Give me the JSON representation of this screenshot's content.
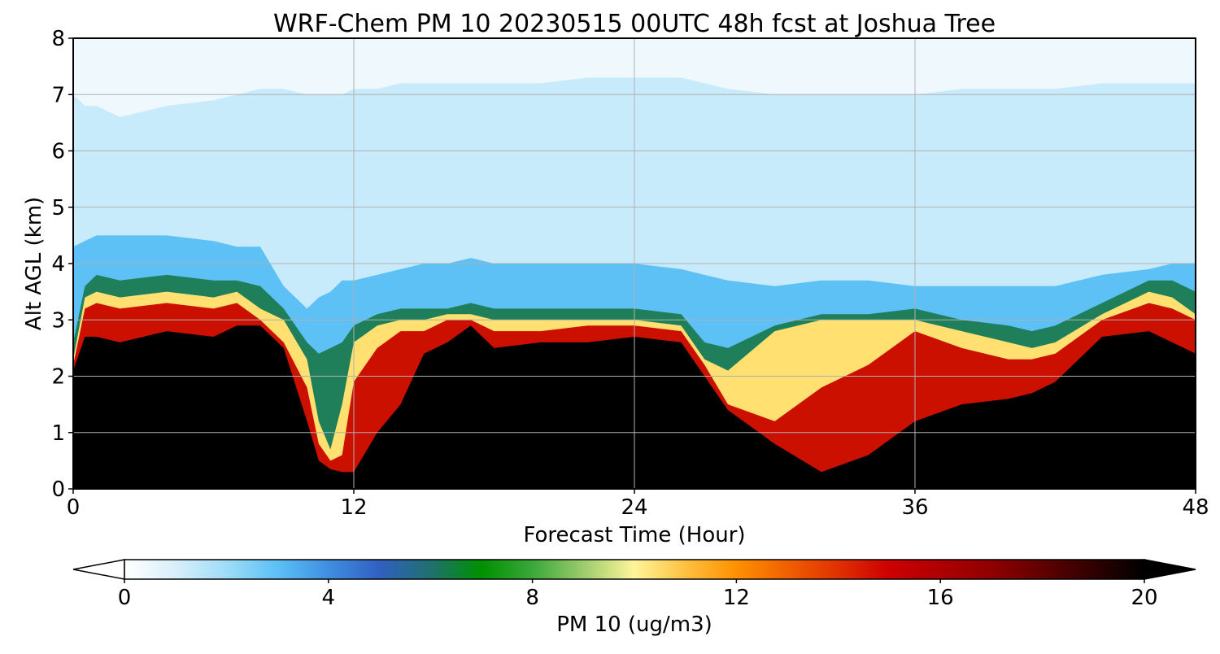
{
  "chart_data": {
    "type": "heatmap",
    "title": "WRF-Chem PM 10  20230515 00UTC 48h fcst at Joshua Tree",
    "xlabel": "Forecast Time (Hour)",
    "ylabel": "Alt AGL (km)",
    "x_ticks": [
      0,
      12,
      24,
      36,
      48
    ],
    "y_ticks": [
      0,
      1,
      2,
      3,
      4,
      5,
      6,
      7,
      8
    ],
    "xlim": [
      0,
      48
    ],
    "ylim": [
      0,
      8
    ],
    "grid": true,
    "colorbar": {
      "label": "PM 10  (ug/m3)",
      "ticks": [
        0,
        4,
        8,
        12,
        16,
        20
      ],
      "range": [
        0,
        20
      ],
      "extend": "both",
      "orientation": "horizontal",
      "stops": [
        {
          "value": 0,
          "color": "#ffffff"
        },
        {
          "value": 1,
          "color": "#d8effb"
        },
        {
          "value": 2,
          "color": "#9fdcf8"
        },
        {
          "value": 3,
          "color": "#5cc0f5"
        },
        {
          "value": 4,
          "color": "#3f8fe0"
        },
        {
          "value": 5,
          "color": "#3060c0"
        },
        {
          "value": 6,
          "color": "#1f7070"
        },
        {
          "value": 7,
          "color": "#009000"
        },
        {
          "value": 8,
          "color": "#3aa83a"
        },
        {
          "value": 9,
          "color": "#9ccc6c"
        },
        {
          "value": 10,
          "color": "#fff59a"
        },
        {
          "value": 11,
          "color": "#ffc040"
        },
        {
          "value": 12,
          "color": "#ff9000"
        },
        {
          "value": 14,
          "color": "#e03000"
        },
        {
          "value": 15,
          "color": "#cc0000"
        },
        {
          "value": 17,
          "color": "#900000"
        },
        {
          "value": 19,
          "color": "#300000"
        },
        {
          "value": 20,
          "color": "#000000"
        }
      ]
    },
    "field": {
      "x": [
        0,
        0.5,
        1,
        2,
        4,
        6,
        7,
        8,
        9,
        10,
        10.5,
        11,
        11.5,
        12,
        13,
        14,
        15,
        16,
        17,
        18,
        20,
        22,
        24,
        26,
        27,
        28,
        30,
        32,
        34,
        36,
        38,
        40,
        41,
        42,
        44,
        46,
        47,
        48
      ],
      "top_km": [
        7.0,
        6.8,
        6.8,
        6.6,
        6.8,
        6.9,
        7.0,
        7.1,
        7.1,
        7.0,
        7.0,
        7.0,
        7.0,
        7.1,
        7.1,
        7.2,
        7.2,
        7.2,
        7.2,
        7.2,
        7.2,
        7.3,
        7.3,
        7.3,
        7.2,
        7.1,
        7.0,
        7.0,
        7.0,
        7.0,
        7.1,
        7.1,
        7.1,
        7.1,
        7.2,
        7.2,
        7.2,
        7.2
      ],
      "blue_km": [
        4.3,
        4.4,
        4.5,
        4.5,
        4.5,
        4.4,
        4.3,
        4.3,
        3.6,
        3.2,
        3.4,
        3.5,
        3.7,
        3.7,
        3.8,
        3.9,
        4.0,
        4.0,
        4.1,
        4.0,
        4.0,
        4.0,
        4.0,
        3.9,
        3.8,
        3.7,
        3.6,
        3.7,
        3.7,
        3.6,
        3.6,
        3.6,
        3.6,
        3.6,
        3.8,
        3.9,
        4.0,
        4.0
      ],
      "green_km": [
        2.6,
        3.6,
        3.8,
        3.7,
        3.8,
        3.7,
        3.7,
        3.6,
        3.2,
        2.6,
        2.4,
        2.5,
        2.6,
        2.9,
        3.1,
        3.2,
        3.2,
        3.2,
        3.3,
        3.2,
        3.2,
        3.2,
        3.2,
        3.1,
        2.6,
        2.5,
        2.9,
        3.1,
        3.1,
        3.2,
        3.0,
        2.9,
        2.8,
        2.9,
        3.3,
        3.7,
        3.7,
        3.5
      ],
      "yellow_km": [
        2.3,
        3.4,
        3.5,
        3.4,
        3.5,
        3.4,
        3.5,
        3.2,
        3.0,
        2.3,
        1.2,
        0.7,
        1.5,
        2.6,
        2.9,
        3.0,
        3.0,
        3.1,
        3.1,
        3.0,
        3.0,
        3.0,
        3.0,
        2.9,
        2.3,
        2.1,
        2.8,
        3.0,
        3.0,
        3.0,
        2.8,
        2.6,
        2.5,
        2.6,
        3.1,
        3.5,
        3.4,
        3.1
      ],
      "red_km": [
        2.2,
        3.2,
        3.3,
        3.2,
        3.3,
        3.2,
        3.3,
        3.0,
        2.6,
        1.8,
        0.8,
        0.5,
        0.6,
        1.9,
        2.5,
        2.8,
        2.8,
        3.0,
        3.0,
        2.8,
        2.8,
        2.9,
        2.9,
        2.8,
        2.2,
        1.5,
        1.2,
        1.8,
        2.2,
        2.8,
        2.5,
        2.3,
        2.3,
        2.4,
        3.0,
        3.3,
        3.2,
        3.0
      ],
      "black_km": [
        2.1,
        2.7,
        2.7,
        2.6,
        2.8,
        2.7,
        2.9,
        2.9,
        2.5,
        1.2,
        0.5,
        0.35,
        0.3,
        0.3,
        1.0,
        1.5,
        2.4,
        2.6,
        2.9,
        2.5,
        2.6,
        2.6,
        2.7,
        2.6,
        2.0,
        1.4,
        0.8,
        0.3,
        0.6,
        1.2,
        1.5,
        1.6,
        1.7,
        1.9,
        2.7,
        2.8,
        2.6,
        2.4
      ]
    }
  }
}
